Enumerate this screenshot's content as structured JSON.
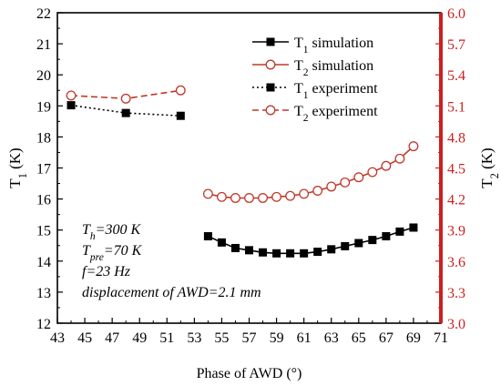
{
  "chart_data": {
    "type": "line",
    "xlabel": "Phase of AWD (°)",
    "ylabel_left": {
      "base": "T",
      "sub": "1",
      "suffix": " (K)"
    },
    "ylabel_right": {
      "base": "T",
      "sub": "2",
      "suffix": " (K)"
    },
    "xlim": [
      43,
      71
    ],
    "ylim_left": [
      12,
      22
    ],
    "ylim_right": [
      3.0,
      6.0
    ],
    "x_ticks": [
      43,
      45,
      47,
      49,
      51,
      53,
      55,
      57,
      59,
      61,
      63,
      65,
      67,
      69,
      71
    ],
    "y_left_ticks": [
      12,
      13,
      14,
      15,
      16,
      17,
      18,
      19,
      20,
      21,
      22
    ],
    "y_right_ticks": [
      "3.0",
      "3.3",
      "3.6",
      "3.9",
      "4.2",
      "4.5",
      "4.8",
      "5.1",
      "5.4",
      "5.7",
      "6.0"
    ],
    "legend_position": "top-right",
    "grid": false,
    "colors": {
      "t1": "#000000",
      "t2": "#c0392b",
      "right_axis": "#cc1f1f",
      "axis": "#000000"
    },
    "series": [
      {
        "name": {
          "base": "T",
          "sub": "1",
          "suffix": " simulation"
        },
        "axis": "left",
        "style": "solid",
        "marker": "filled-square",
        "color": "#000000",
        "x": [
          54,
          55,
          56,
          57,
          58,
          59,
          60,
          61,
          62,
          63,
          64,
          65,
          66,
          67,
          68,
          69
        ],
        "y": [
          14.8,
          14.6,
          14.42,
          14.35,
          14.28,
          14.25,
          14.25,
          14.25,
          14.3,
          14.38,
          14.48,
          14.58,
          14.68,
          14.8,
          14.95,
          15.08
        ]
      },
      {
        "name": {
          "base": "T",
          "sub": "2",
          "suffix": " simulation"
        },
        "axis": "right",
        "style": "solid",
        "marker": "open-circle",
        "color": "#c0392b",
        "x": [
          54,
          55,
          56,
          57,
          58,
          59,
          60,
          61,
          62,
          63,
          64,
          65,
          66,
          67,
          68,
          69
        ],
        "y": [
          4.25,
          4.22,
          4.21,
          4.21,
          4.21,
          4.22,
          4.23,
          4.25,
          4.28,
          4.32,
          4.36,
          4.41,
          4.46,
          4.52,
          4.59,
          4.71
        ]
      },
      {
        "name": {
          "base": "T",
          "sub": "1",
          "suffix": " experiment"
        },
        "axis": "left",
        "style": "dotted",
        "marker": "filled-square",
        "color": "#000000",
        "x": [
          44,
          48,
          52
        ],
        "y": [
          19.02,
          18.77,
          18.68
        ]
      },
      {
        "name": {
          "base": "T",
          "sub": "2",
          "suffix": " experiment"
        },
        "axis": "right",
        "style": "dashed",
        "marker": "open-circle",
        "color": "#c0392b",
        "x": [
          44,
          48,
          52
        ],
        "y": [
          5.2,
          5.17,
          5.25
        ]
      }
    ],
    "annotations": [
      {
        "base": "T",
        "sub": "h",
        "suffix": "=300 K"
      },
      {
        "base": "T",
        "sub": "pre",
        "suffix": "=70 K"
      },
      {
        "base": "f=23 Hz",
        "sub": "",
        "suffix": ""
      },
      {
        "base": "displacement of AWD=2.1 mm",
        "sub": "",
        "suffix": ""
      }
    ]
  }
}
